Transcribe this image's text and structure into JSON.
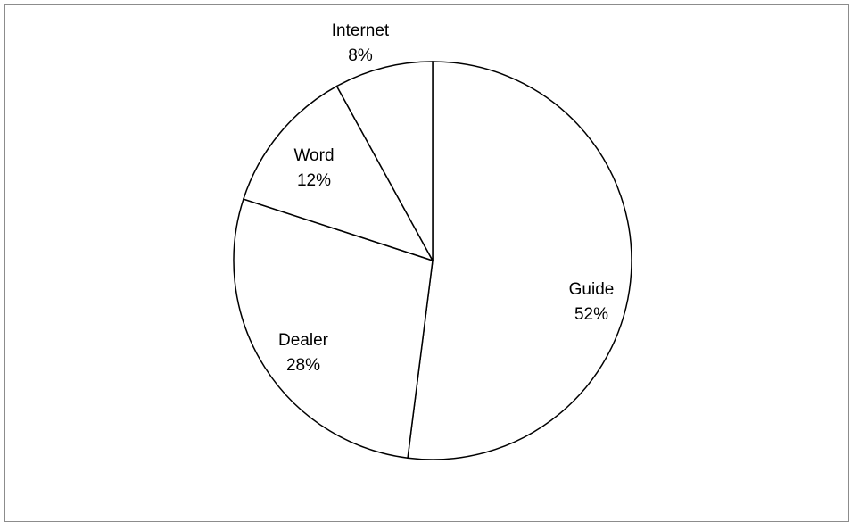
{
  "chart_data": {
    "type": "pie",
    "title": "",
    "slices": [
      {
        "label": "Guide",
        "value": 52,
        "percent_label": "52%"
      },
      {
        "label": "Dealer",
        "value": 28,
        "percent_label": "28%"
      },
      {
        "label": "Word",
        "value": 12,
        "percent_label": "12%"
      },
      {
        "label": "Internet",
        "value": 8,
        "percent_label": "8%"
      }
    ],
    "start_angle_deg": 0,
    "direction": "clockwise",
    "fill_color": "#ffffff",
    "stroke_color": "#000000",
    "legend": "none"
  }
}
